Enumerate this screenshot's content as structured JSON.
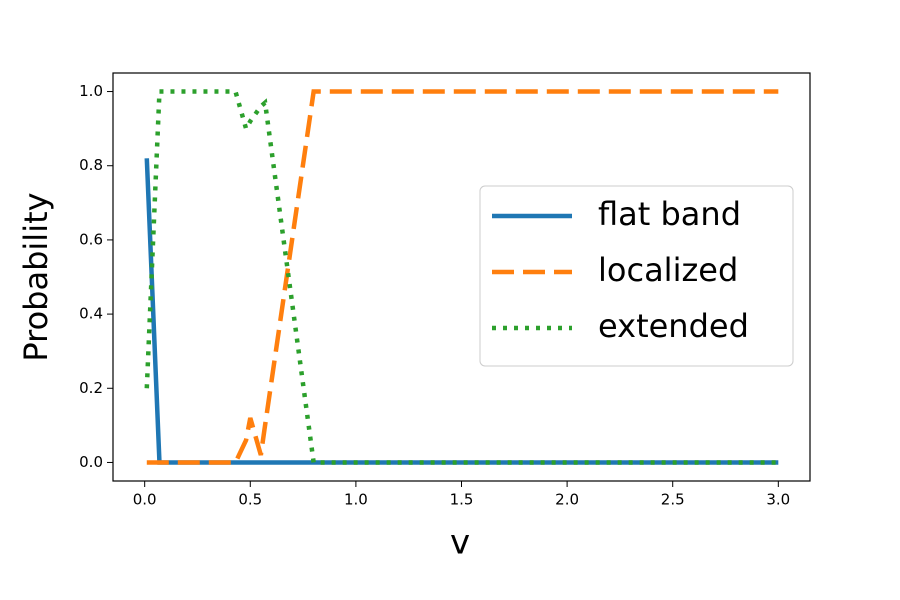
{
  "chart_data": {
    "type": "line",
    "x_label": "v",
    "y_label": "Probability",
    "x": [
      0.01,
      0.07,
      0.43,
      0.48,
      0.5,
      0.55,
      0.57,
      0.8,
      0.9,
      3.0
    ],
    "series": [
      {
        "name": "flat band",
        "color": "#1f77b4",
        "dash": "solid",
        "values": [
          0.82,
          0,
          0,
          0,
          0,
          0,
          0,
          0,
          0,
          0
        ]
      },
      {
        "name": "localized",
        "color": "#ff7f0e",
        "dash": "dashed",
        "values": [
          0,
          0,
          0,
          0.06,
          0.12,
          0.02,
          0.1,
          1.0,
          1.0,
          1.0
        ]
      },
      {
        "name": "extended",
        "color": "#2ca02c",
        "dash": "dotted",
        "values": [
          0.2,
          1.0,
          1.0,
          0.9,
          0.92,
          0.96,
          0.97,
          0,
          0,
          0
        ]
      }
    ],
    "xlim": [
      -0.15,
      3.15
    ],
    "ylim": [
      -0.05,
      1.05
    ],
    "xticks": [
      {
        "value": 0,
        "label": "0.0"
      },
      {
        "value": 0.5,
        "label": "0.5"
      },
      {
        "value": 1,
        "label": "1.0"
      },
      {
        "value": 1.5,
        "label": "1.5"
      },
      {
        "value": 2,
        "label": "2.0"
      },
      {
        "value": 2.5,
        "label": "2.5"
      },
      {
        "value": 3,
        "label": "3.0"
      }
    ],
    "yticks": [
      {
        "value": 0,
        "label": "0.0"
      },
      {
        "value": 0.2,
        "label": "0.2"
      },
      {
        "value": 0.4,
        "label": "0.4"
      },
      {
        "value": 0.6,
        "label": "0.6"
      },
      {
        "value": 0.8,
        "label": "0.8"
      },
      {
        "value": 1,
        "label": "1.0"
      }
    ],
    "legend": "center right"
  }
}
